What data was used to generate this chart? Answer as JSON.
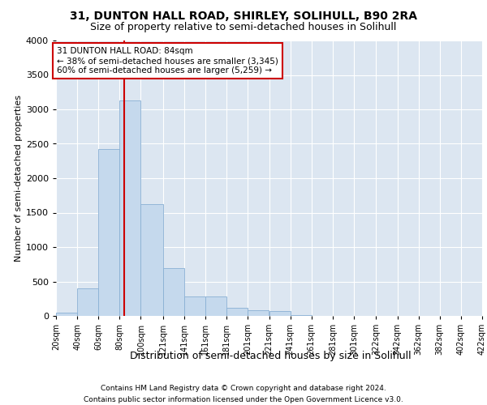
{
  "title_line1": "31, DUNTON HALL ROAD, SHIRLEY, SOLIHULL, B90 2RA",
  "title_line2": "Size of property relative to semi-detached houses in Solihull",
  "xlabel": "Distribution of semi-detached houses by size in Solihull",
  "ylabel": "Number of semi-detached properties",
  "footer_line1": "Contains HM Land Registry data © Crown copyright and database right 2024.",
  "footer_line2": "Contains public sector information licensed under the Open Government Licence v3.0.",
  "annotation_line1": "31 DUNTON HALL ROAD: 84sqm",
  "annotation_line2": "← 38% of semi-detached houses are smaller (3,345)",
  "annotation_line3": "60% of semi-detached houses are larger (5,259) →",
  "property_size": 84,
  "bin_edges": [
    20,
    40,
    60,
    80,
    100,
    121,
    141,
    161,
    181,
    201,
    221,
    241,
    261,
    281,
    301,
    322,
    342,
    362,
    382,
    402,
    422
  ],
  "bar_heights": [
    50,
    400,
    2420,
    3130,
    1620,
    700,
    280,
    280,
    120,
    80,
    70,
    10,
    5,
    3,
    2,
    2,
    1,
    1,
    0,
    0
  ],
  "bar_color": "#c5d9ed",
  "bar_edge_color": "#8ab0d4",
  "vline_color": "#cc0000",
  "annotation_box_color": "#cc0000",
  "background_color": "#dce6f1",
  "ylim": [
    0,
    4000
  ],
  "yticks": [
    0,
    500,
    1000,
    1500,
    2000,
    2500,
    3000,
    3500,
    4000
  ],
  "grid_color": "#ffffff",
  "title_fontsize": 10,
  "subtitle_fontsize": 9,
  "ylabel_fontsize": 8,
  "xtick_fontsize": 7,
  "ytick_fontsize": 8,
  "annotation_fontsize": 7.5,
  "xlabel_fontsize": 9,
  "footer_fontsize": 6.5
}
